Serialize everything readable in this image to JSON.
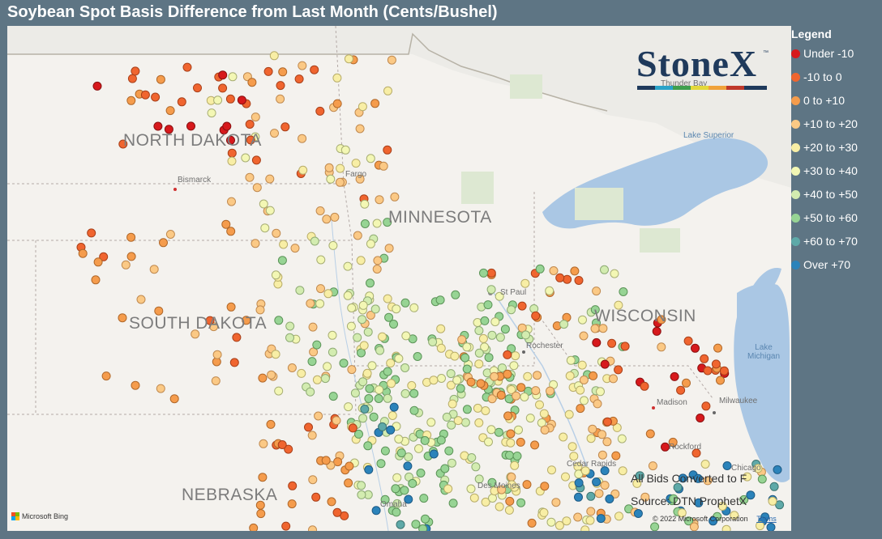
{
  "title": "Soybean Spot Basis Difference from Last Month (Cents/Bushel)",
  "brand": {
    "logo_text": "StoneX",
    "tm": "™",
    "bar_colors": [
      "#1f3a5c",
      "#2aa3c9",
      "#3f9f4d",
      "#e3d83a",
      "#f0a23a",
      "#c0392b"
    ]
  },
  "map": {
    "states": [
      {
        "name": "NORTH DAKOTA"
      },
      {
        "name": "SOUTH DAKOTA"
      },
      {
        "name": "MINNESOTA"
      },
      {
        "name": "WISCONSIN"
      },
      {
        "name": "NEBRASKA"
      }
    ],
    "cities": [
      "Bismarck",
      "Fargo",
      "St Paul",
      "Rochester",
      "Madison",
      "Milwaukee",
      "Rockford",
      "Chicago",
      "Cedar Rapids",
      "Des Moines",
      "Omaha",
      "Thunder Bay"
    ],
    "lakes": [
      "Lake Superior",
      "Lake Michigan"
    ],
    "attribution": "Microsoft Bing",
    "copyright": "© 2022 Microsoft Corporation",
    "terms": "Terms"
  },
  "notes": {
    "bids": "All Bids Converted to F",
    "source": "Source: DTN ProphetX"
  },
  "legend": {
    "title": "Legend",
    "items": [
      {
        "label": "Under -10",
        "color": "#d7191c"
      },
      {
        "label": "-10 to 0",
        "color": "#f0652f"
      },
      {
        "label": "0 to +10",
        "color": "#f59c4c"
      },
      {
        "label": "+10 to +20",
        "color": "#fbc985"
      },
      {
        "label": "+20 to +30",
        "color": "#f8eea5"
      },
      {
        "label": "+30 to +40",
        "color": "#f3f7b4"
      },
      {
        "label": "+40 to +50",
        "color": "#d3ecb0"
      },
      {
        "label": "+50 to +60",
        "color": "#97d494"
      },
      {
        "label": "+60 to +70",
        "color": "#5ea9a8"
      },
      {
        "label": "Over +70",
        "color": "#2b83ba"
      }
    ]
  }
}
